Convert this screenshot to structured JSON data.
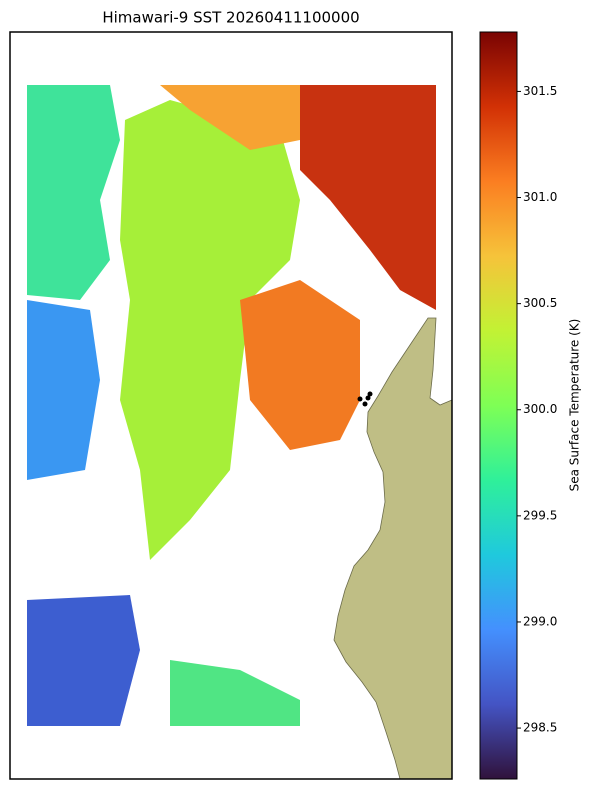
{
  "map": {
    "title": "Himawari-9 SST 20260411100000",
    "colorbar": {
      "label": "Sea Surface Temperature (K)",
      "lim": [
        298.26,
        301.78
      ],
      "ticks": [
        298.5,
        {
          "value": 299,
          "label": "299.0"
        },
        299.5,
        {
          "value": 300,
          "label": "300.0"
        },
        300.5,
        {
          "value": 301,
          "label": "301.0"
        },
        301.5
      ]
    }
  }
}
